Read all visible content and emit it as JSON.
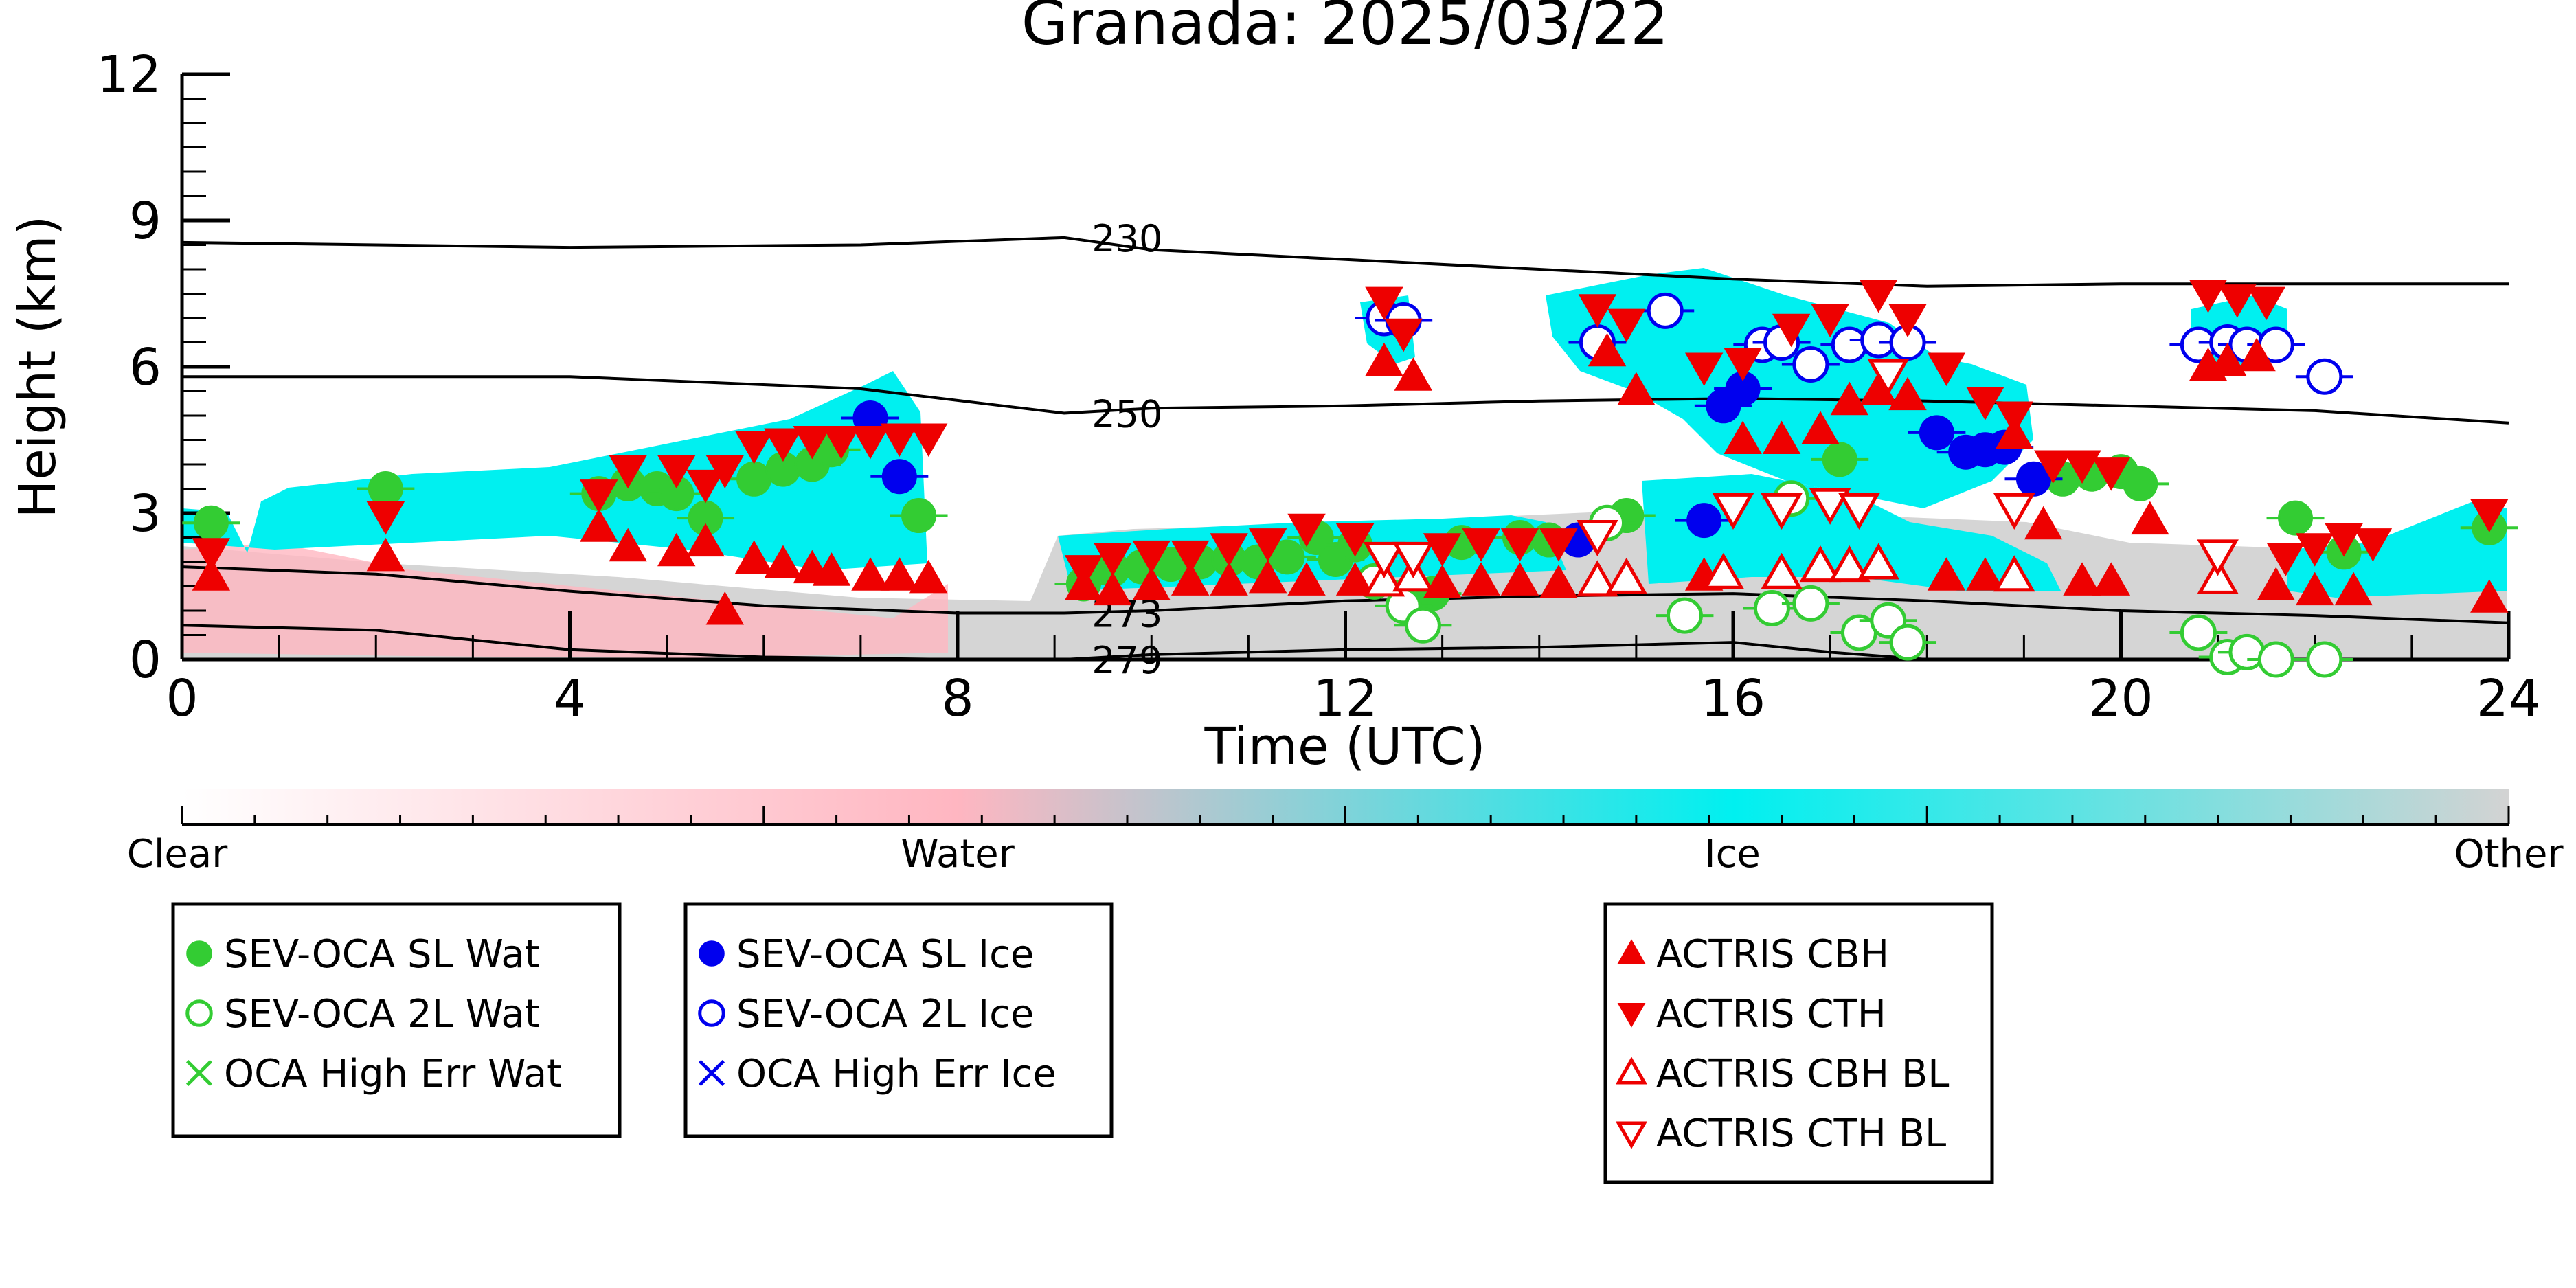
{
  "chart_data": {
    "type": "scatter",
    "title": "Granada: 2025/03/22",
    "xlabel": "Time (UTC)",
    "ylabel": "Height (km)",
    "xlim": [
      0,
      24
    ],
    "ylim": [
      0,
      12
    ],
    "xticks": [
      0,
      4,
      8,
      12,
      16,
      20,
      24
    ],
    "yticks": [
      0,
      3,
      6,
      9,
      12
    ],
    "grid": false,
    "colorbar": {
      "labels": [
        "Clear",
        "Water",
        "Ice",
        "Other"
      ],
      "colors": [
        "#ffffff",
        "#ffb6c1",
        "#00f0f0",
        "#d3d3d3"
      ]
    },
    "contours": [
      {
        "label": "230",
        "points": [
          [
            0,
            8.55
          ],
          [
            4,
            8.45
          ],
          [
            7,
            8.5
          ],
          [
            9.1,
            8.65
          ],
          [
            10,
            8.4
          ],
          [
            12,
            8.2
          ],
          [
            14,
            8.0
          ],
          [
            16,
            7.8
          ],
          [
            18,
            7.65
          ],
          [
            20,
            7.7
          ],
          [
            22,
            7.7
          ],
          [
            24,
            7.7
          ]
        ]
      },
      {
        "label": "250",
        "points": [
          [
            0,
            5.8
          ],
          [
            4,
            5.8
          ],
          [
            7,
            5.55
          ],
          [
            9.1,
            5.05
          ],
          [
            10,
            5.15
          ],
          [
            12,
            5.2
          ],
          [
            14,
            5.3
          ],
          [
            16,
            5.35
          ],
          [
            18,
            5.3
          ],
          [
            20,
            5.2
          ],
          [
            22,
            5.1
          ],
          [
            24,
            4.85
          ]
        ]
      },
      {
        "label": "273",
        "points": [
          [
            0,
            1.9
          ],
          [
            2,
            1.75
          ],
          [
            4,
            1.4
          ],
          [
            6,
            1.1
          ],
          [
            8,
            0.95
          ],
          [
            9.1,
            0.95
          ],
          [
            10,
            1.0
          ],
          [
            12,
            1.2
          ],
          [
            14,
            1.3
          ],
          [
            16,
            1.35
          ],
          [
            18,
            1.2
          ],
          [
            20,
            1.0
          ],
          [
            22,
            0.9
          ],
          [
            24,
            0.75
          ]
        ]
      },
      {
        "label": "279",
        "points": [
          [
            0,
            0.7
          ],
          [
            2,
            0.6
          ],
          [
            4,
            0.2
          ],
          [
            6,
            0.05
          ],
          [
            8,
            0.0
          ],
          [
            9.1,
            0.0
          ],
          [
            10,
            0.1
          ],
          [
            12,
            0.2
          ],
          [
            14,
            0.25
          ],
          [
            16,
            0.35
          ],
          [
            17,
            0.15
          ],
          [
            18,
            0.0
          ]
        ]
      }
    ],
    "series": [
      {
        "name": "SEV-OCA SL Wat",
        "color": "#33cc33",
        "marker": "filled-circle",
        "points": [
          [
            0.3,
            2.8
          ],
          [
            2.1,
            3.5
          ],
          [
            4.3,
            3.4
          ],
          [
            4.6,
            3.6
          ],
          [
            4.9,
            3.5
          ],
          [
            5.1,
            3.4
          ],
          [
            5.4,
            2.9
          ],
          [
            5.9,
            3.7
          ],
          [
            6.2,
            3.9
          ],
          [
            6.5,
            4.0
          ],
          [
            6.7,
            4.3
          ],
          [
            7.6,
            2.95
          ],
          [
            9.3,
            1.55
          ],
          [
            9.6,
            1.85
          ],
          [
            9.9,
            1.9
          ],
          [
            10.2,
            1.95
          ],
          [
            10.5,
            2.0
          ],
          [
            10.8,
            2.05
          ],
          [
            11.1,
            2.0
          ],
          [
            11.4,
            2.1
          ],
          [
            11.7,
            2.5
          ],
          [
            11.9,
            2.05
          ],
          [
            12.1,
            2.35
          ],
          [
            12.9,
            1.35
          ],
          [
            13.2,
            2.4
          ],
          [
            13.8,
            2.5
          ],
          [
            14.1,
            2.45
          ],
          [
            14.9,
            2.95
          ],
          [
            17.1,
            4.1
          ],
          [
            19.4,
            3.7
          ],
          [
            19.7,
            3.8
          ],
          [
            20.0,
            3.85
          ],
          [
            20.2,
            3.6
          ],
          [
            21.8,
            2.9
          ],
          [
            22.3,
            2.2
          ],
          [
            23.8,
            2.7
          ]
        ]
      },
      {
        "name": "SEV-OCA 2L Wat",
        "color": "#33cc33",
        "marker": "open-circle",
        "points": [
          [
            12.3,
            1.6
          ],
          [
            12.6,
            1.1
          ],
          [
            12.8,
            0.7
          ],
          [
            14.7,
            2.8
          ],
          [
            15.5,
            0.9
          ],
          [
            16.4,
            1.05
          ],
          [
            16.8,
            1.15
          ],
          [
            17.3,
            0.55
          ],
          [
            17.6,
            0.8
          ],
          [
            17.8,
            0.35
          ],
          [
            20.8,
            0.55
          ],
          [
            21.1,
            0.05
          ],
          [
            21.3,
            0.15
          ],
          [
            21.6,
            0.0
          ],
          [
            22.1,
            0.0
          ],
          [
            16.6,
            3.3
          ]
        ]
      },
      {
        "name": "OCA High Err Wat",
        "color": "#33cc33",
        "marker": "x",
        "points": []
      },
      {
        "name": "SEV-OCA SL Ice",
        "color": "#0000ee",
        "marker": "filled-circle",
        "points": [
          [
            7.1,
            4.95
          ],
          [
            7.4,
            3.75
          ],
          [
            14.4,
            2.45
          ],
          [
            15.7,
            2.85
          ],
          [
            15.9,
            5.2
          ],
          [
            16.1,
            5.55
          ],
          [
            18.1,
            4.65
          ],
          [
            18.4,
            4.25
          ],
          [
            18.6,
            4.3
          ],
          [
            18.8,
            4.35
          ],
          [
            19.1,
            3.7
          ]
        ]
      },
      {
        "name": "SEV-OCA 2L Ice",
        "color": "#0000ee",
        "marker": "open-circle",
        "points": [
          [
            12.4,
            7.0
          ],
          [
            12.6,
            6.95
          ],
          [
            14.6,
            6.5
          ],
          [
            15.3,
            7.15
          ],
          [
            16.3,
            6.45
          ],
          [
            16.5,
            6.5
          ],
          [
            16.8,
            6.05
          ],
          [
            17.2,
            6.45
          ],
          [
            17.5,
            6.55
          ],
          [
            17.8,
            6.5
          ],
          [
            20.8,
            6.45
          ],
          [
            21.1,
            6.5
          ],
          [
            21.3,
            6.45
          ],
          [
            21.6,
            6.45
          ],
          [
            22.1,
            5.8
          ]
        ]
      },
      {
        "name": "OCA High Err Ice",
        "color": "#0000ee",
        "marker": "x",
        "points": []
      },
      {
        "name": "ACTRIS CBH",
        "color": "#ee0000",
        "marker": "filled-triangle-up",
        "points": [
          [
            0.3,
            1.7
          ],
          [
            2.1,
            2.1
          ],
          [
            4.3,
            2.7
          ],
          [
            4.6,
            2.3
          ],
          [
            5.1,
            2.2
          ],
          [
            5.4,
            2.4
          ],
          [
            5.6,
            1.0
          ],
          [
            5.9,
            2.05
          ],
          [
            6.2,
            1.95
          ],
          [
            6.5,
            1.85
          ],
          [
            6.7,
            1.8
          ],
          [
            7.1,
            1.7
          ],
          [
            7.4,
            1.7
          ],
          [
            7.7,
            1.65
          ],
          [
            9.3,
            1.5
          ],
          [
            9.6,
            1.4
          ],
          [
            10.0,
            1.5
          ],
          [
            10.4,
            1.6
          ],
          [
            10.8,
            1.6
          ],
          [
            11.2,
            1.65
          ],
          [
            11.6,
            1.6
          ],
          [
            12.1,
            1.6
          ],
          [
            12.4,
            6.1
          ],
          [
            12.7,
            5.8
          ],
          [
            13.0,
            1.55
          ],
          [
            13.4,
            1.6
          ],
          [
            13.8,
            1.6
          ],
          [
            14.2,
            1.55
          ],
          [
            14.7,
            6.3
          ],
          [
            15.0,
            5.5
          ],
          [
            15.7,
            1.7
          ],
          [
            16.1,
            4.5
          ],
          [
            16.5,
            4.5
          ],
          [
            16.9,
            4.7
          ],
          [
            17.2,
            5.3
          ],
          [
            17.5,
            5.5
          ],
          [
            17.8,
            5.4
          ],
          [
            18.2,
            1.7
          ],
          [
            18.6,
            1.7
          ],
          [
            18.9,
            4.6
          ],
          [
            19.2,
            2.75
          ],
          [
            19.6,
            1.6
          ],
          [
            19.9,
            1.6
          ],
          [
            20.3,
            2.85
          ],
          [
            20.9,
            6.0
          ],
          [
            21.1,
            6.1
          ],
          [
            21.4,
            6.2
          ],
          [
            21.6,
            1.5
          ],
          [
            22.0,
            1.4
          ],
          [
            22.4,
            1.4
          ],
          [
            23.8,
            1.25
          ]
        ]
      },
      {
        "name": "ACTRIS CTH",
        "color": "#ee0000",
        "marker": "filled-triangle-down",
        "points": [
          [
            0.3,
            2.2
          ],
          [
            2.1,
            2.95
          ],
          [
            4.3,
            3.4
          ],
          [
            4.6,
            3.9
          ],
          [
            5.1,
            3.9
          ],
          [
            5.4,
            3.6
          ],
          [
            5.6,
            3.9
          ],
          [
            5.9,
            4.4
          ],
          [
            6.2,
            4.45
          ],
          [
            6.5,
            4.5
          ],
          [
            6.8,
            4.5
          ],
          [
            7.1,
            4.5
          ],
          [
            7.4,
            4.55
          ],
          [
            7.7,
            4.55
          ],
          [
            9.3,
            1.85
          ],
          [
            9.6,
            2.1
          ],
          [
            10.0,
            2.15
          ],
          [
            10.4,
            2.15
          ],
          [
            10.8,
            2.3
          ],
          [
            11.2,
            2.4
          ],
          [
            11.6,
            2.7
          ],
          [
            12.1,
            2.5
          ],
          [
            12.4,
            7.35
          ],
          [
            12.6,
            6.7
          ],
          [
            13.0,
            2.3
          ],
          [
            13.4,
            2.4
          ],
          [
            13.8,
            2.4
          ],
          [
            14.2,
            2.4
          ],
          [
            14.6,
            7.2
          ],
          [
            14.9,
            6.9
          ],
          [
            15.7,
            6.0
          ],
          [
            16.1,
            6.1
          ],
          [
            16.6,
            6.8
          ],
          [
            17.0,
            7.0
          ],
          [
            17.5,
            7.5
          ],
          [
            17.8,
            7.0
          ],
          [
            18.2,
            6.0
          ],
          [
            18.6,
            5.3
          ],
          [
            18.9,
            5.0
          ],
          [
            19.3,
            4.0
          ],
          [
            19.6,
            4.0
          ],
          [
            19.9,
            3.85
          ],
          [
            20.9,
            7.5
          ],
          [
            21.2,
            7.4
          ],
          [
            21.5,
            7.35
          ],
          [
            21.7,
            2.1
          ],
          [
            22.0,
            2.3
          ],
          [
            22.3,
            2.5
          ],
          [
            22.6,
            2.4
          ],
          [
            23.8,
            3.0
          ]
        ]
      },
      {
        "name": "ACTRIS CBH BL",
        "color": "#ee0000",
        "marker": "open-triangle-up",
        "points": [
          [
            12.4,
            1.6
          ],
          [
            12.7,
            1.7
          ],
          [
            14.6,
            1.6
          ],
          [
            14.9,
            1.65
          ],
          [
            15.9,
            1.75
          ],
          [
            16.5,
            1.75
          ],
          [
            16.9,
            1.9
          ],
          [
            17.2,
            1.9
          ],
          [
            17.5,
            1.95
          ],
          [
            18.9,
            1.7
          ],
          [
            21.0,
            1.65
          ]
        ]
      },
      {
        "name": "ACTRIS CTH BL",
        "color": "#ee0000",
        "marker": "open-triangle-down",
        "points": [
          [
            12.4,
            2.1
          ],
          [
            12.7,
            2.1
          ],
          [
            14.6,
            2.55
          ],
          [
            16.0,
            3.1
          ],
          [
            16.5,
            3.1
          ],
          [
            17.0,
            3.2
          ],
          [
            17.3,
            3.1
          ],
          [
            17.6,
            5.85
          ],
          [
            18.9,
            3.1
          ],
          [
            21.0,
            2.15
          ]
        ]
      }
    ],
    "legend_groups": [
      [
        "SEV-OCA SL Wat",
        "SEV-OCA 2L Wat",
        "OCA High Err Wat"
      ],
      [
        "SEV-OCA SL Ice",
        "SEV-OCA 2L Ice",
        "OCA High Err Ice"
      ],
      [
        "ACTRIS CBH",
        "ACTRIS CTH",
        "ACTRIS CBH BL",
        "ACTRIS CTH BL"
      ]
    ]
  }
}
